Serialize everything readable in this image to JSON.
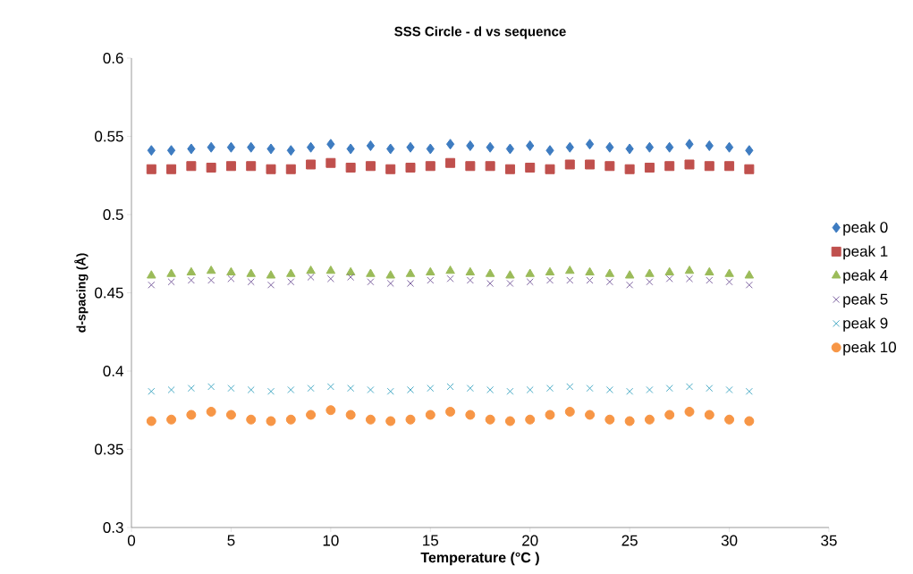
{
  "chart_data": {
    "type": "scatter",
    "title": "SSS Circle - d vs sequence",
    "xlabel": "Temperature (°C )",
    "ylabel": "d-spacing (Å)",
    "x": [
      1,
      2,
      3,
      4,
      5,
      6,
      7,
      8,
      9,
      10,
      11,
      12,
      13,
      14,
      15,
      16,
      17,
      18,
      19,
      20,
      21,
      22,
      23,
      24,
      25,
      26,
      27,
      28,
      29,
      30,
      31
    ],
    "xlim": [
      0,
      35
    ],
    "xticks": [
      0,
      5,
      10,
      15,
      20,
      25,
      30,
      35
    ],
    "ylim": [
      0.3,
      0.6
    ],
    "yticks": [
      0.3,
      0.35,
      0.4,
      0.45,
      0.5,
      0.55,
      0.6
    ],
    "grid": false,
    "legend": "right",
    "series": [
      {
        "name": "peak 0",
        "color": "#3e7cc1",
        "marker": "diamond",
        "values": [
          0.541,
          0.541,
          0.542,
          0.543,
          0.543,
          0.543,
          0.542,
          0.541,
          0.543,
          0.545,
          0.542,
          0.544,
          0.542,
          0.543,
          0.542,
          0.545,
          0.544,
          0.543,
          0.542,
          0.544,
          0.541,
          0.543,
          0.545,
          0.543,
          0.542,
          0.543,
          0.543,
          0.545,
          0.544,
          0.543,
          0.541
        ]
      },
      {
        "name": "peak 1",
        "color": "#c0504d",
        "marker": "square",
        "values": [
          0.529,
          0.529,
          0.531,
          0.53,
          0.531,
          0.531,
          0.529,
          0.529,
          0.532,
          0.533,
          0.53,
          0.531,
          0.529,
          0.53,
          0.531,
          0.533,
          0.531,
          0.531,
          0.529,
          0.53,
          0.529,
          0.532,
          0.532,
          0.531,
          0.529,
          0.53,
          0.531,
          0.532,
          0.531,
          0.531,
          0.529
        ]
      },
      {
        "name": "peak 4",
        "color": "#9bbb59",
        "marker": "triangle",
        "values": [
          0.461,
          0.462,
          0.463,
          0.464,
          0.463,
          0.462,
          0.461,
          0.462,
          0.464,
          0.464,
          0.463,
          0.462,
          0.461,
          0.462,
          0.463,
          0.464,
          0.463,
          0.462,
          0.461,
          0.462,
          0.463,
          0.464,
          0.463,
          0.462,
          0.461,
          0.462,
          0.463,
          0.464,
          0.463,
          0.462,
          0.461
        ]
      },
      {
        "name": "peak 5",
        "color": "#8064a2",
        "marker": "cross",
        "values": [
          0.455,
          0.457,
          0.458,
          0.458,
          0.459,
          0.457,
          0.455,
          0.457,
          0.46,
          0.459,
          0.46,
          0.457,
          0.456,
          0.456,
          0.458,
          0.459,
          0.458,
          0.456,
          0.456,
          0.457,
          0.458,
          0.458,
          0.458,
          0.457,
          0.455,
          0.457,
          0.459,
          0.459,
          0.458,
          0.457,
          0.455
        ]
      },
      {
        "name": "peak 9",
        "color": "#4bacc6",
        "marker": "cross",
        "values": [
          0.387,
          0.388,
          0.389,
          0.39,
          0.389,
          0.388,
          0.387,
          0.388,
          0.389,
          0.39,
          0.389,
          0.388,
          0.387,
          0.388,
          0.389,
          0.39,
          0.389,
          0.388,
          0.387,
          0.388,
          0.389,
          0.39,
          0.389,
          0.388,
          0.387,
          0.388,
          0.389,
          0.39,
          0.389,
          0.388,
          0.387
        ]
      },
      {
        "name": "peak 10",
        "color": "#f79646",
        "marker": "circle",
        "values": [
          0.368,
          0.369,
          0.372,
          0.374,
          0.372,
          0.369,
          0.368,
          0.369,
          0.372,
          0.375,
          0.372,
          0.369,
          0.368,
          0.369,
          0.372,
          0.374,
          0.372,
          0.369,
          0.368,
          0.369,
          0.372,
          0.374,
          0.372,
          0.369,
          0.368,
          0.369,
          0.372,
          0.374,
          0.372,
          0.369,
          0.368
        ]
      }
    ]
  }
}
